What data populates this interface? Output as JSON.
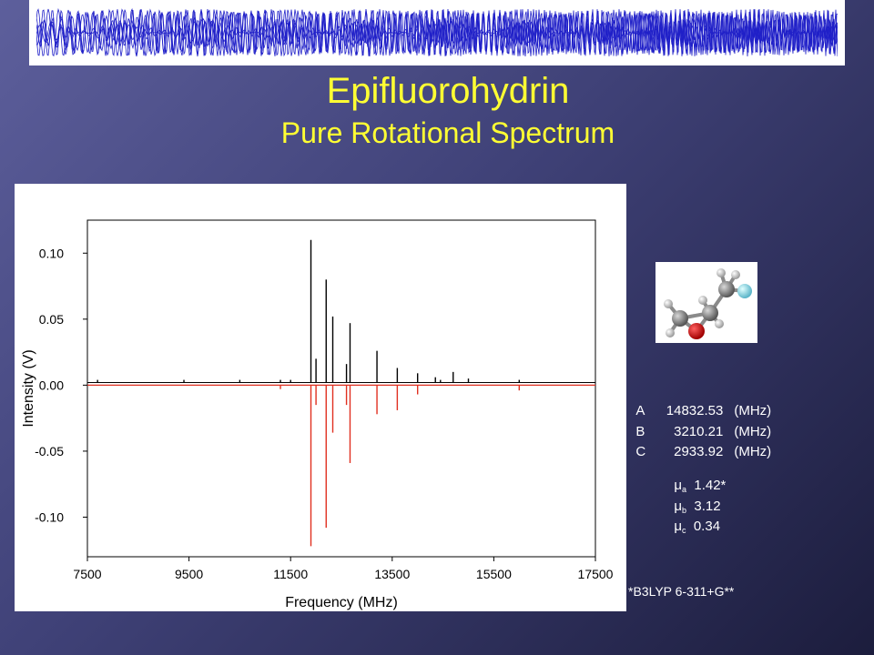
{
  "title": "Epifluorohydrin",
  "subtitle": "Pure Rotational Spectrum",
  "colors": {
    "background": "#3f4177",
    "title": "#ffff33",
    "observed": "#000000",
    "predicted": "#e03020",
    "banner_wave": "#2020c8"
  },
  "banner": {
    "icon": "interference-wave-pattern"
  },
  "molecule": {
    "icon": "ball-and-stick-molecule"
  },
  "constants": [
    {
      "label": "A",
      "value": "14832.53",
      "unit": "(MHz)"
    },
    {
      "label": "B",
      "value": "3210.21",
      "unit": "(MHz)"
    },
    {
      "label": "C",
      "value": "2933.92",
      "unit": "(MHz)"
    }
  ],
  "dipoles": [
    {
      "symbol": "μ",
      "sub": "a",
      "value": "1.42*"
    },
    {
      "symbol": "μ",
      "sub": "b",
      "value": "3.12"
    },
    {
      "symbol": "μ",
      "sub": "c",
      "value": "0.34"
    }
  ],
  "footnote": "*B3LYP 6-311+G**",
  "chart_data": {
    "type": "line",
    "title": "",
    "xlabel": "Frequency (MHz)",
    "ylabel": "Intensity (V)",
    "xlim": [
      7500,
      17500
    ],
    "ylim": [
      -0.13,
      0.125
    ],
    "xticks": [
      7500,
      9500,
      11500,
      13500,
      15500,
      17500
    ],
    "xtick_labels": [
      "7500",
      "9500",
      "11500",
      "13500",
      "15500",
      "17500"
    ],
    "yticks": [
      0.1,
      0.05,
      0.0,
      -0.05,
      -0.1
    ],
    "ytick_labels": [
      "0.10",
      "0.05",
      "0.00",
      "-0.05",
      "-0.10"
    ],
    "baseline": {
      "observed": 0.002,
      "predicted": 0.0
    },
    "series": [
      {
        "kind": "observed",
        "x": [
          7700,
          9400,
          10500,
          11300,
          11500,
          11900,
          12000,
          12200,
          12330,
          12600,
          12670,
          13200,
          13600,
          14000,
          14350,
          14450,
          14700,
          15000,
          16000
        ],
        "y": [
          0.004,
          0.004,
          0.004,
          0.004,
          0.004,
          0.11,
          0.02,
          0.08,
          0.052,
          0.016,
          0.047,
          0.026,
          0.013,
          0.009,
          0.006,
          0.004,
          0.01,
          0.005,
          0.004
        ]
      },
      {
        "kind": "predicted",
        "x": [
          11300,
          11900,
          12000,
          12200,
          12330,
          12600,
          12670,
          13200,
          13600,
          14000,
          16000
        ],
        "y": [
          -0.003,
          -0.122,
          -0.015,
          -0.108,
          -0.036,
          -0.015,
          -0.059,
          -0.022,
          -0.019,
          -0.007,
          -0.004
        ]
      }
    ]
  }
}
